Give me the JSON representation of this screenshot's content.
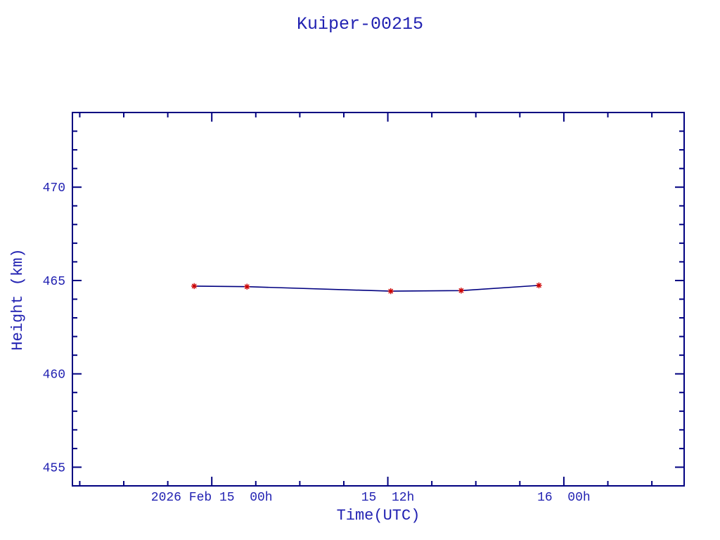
{
  "page": {
    "background": "#ffffff"
  },
  "chart_data": {
    "type": "line",
    "title": "Kuiper-00215",
    "xlabel": "Time(UTC)",
    "ylabel": "Height (km)",
    "grid": false,
    "legend": false,
    "colors": {
      "text": "#2222b2",
      "axis": "#000080",
      "line": "#000080",
      "marker": "#cc0000",
      "background": "#ffffff"
    },
    "x_axis": {
      "description": "hours relative to 2026 Feb 15 00h UTC, read from tick labels",
      "range_hours": [
        -9.5,
        32.2
      ],
      "minor_tick_step_hours": 3,
      "major_ticks": [
        {
          "value": 0,
          "label": "2026 Feb 15  00h"
        },
        {
          "value": 12,
          "label": "15  12h"
        },
        {
          "value": 24,
          "label": "16  00h"
        }
      ]
    },
    "y_axis": {
      "range_km": [
        454,
        474
      ],
      "minor_tick_step_km": 1,
      "major_ticks": [
        {
          "value": 455,
          "label": "455"
        },
        {
          "value": 460,
          "label": "460"
        },
        {
          "value": 465,
          "label": "465"
        },
        {
          "value": 470,
          "label": "470"
        }
      ]
    },
    "series": [
      {
        "name": "height",
        "marker": "asterisk",
        "points": [
          {
            "t_hours": -1.2,
            "height_km": 464.7
          },
          {
            "t_hours": 2.4,
            "height_km": 464.67
          },
          {
            "t_hours": 12.2,
            "height_km": 464.43
          },
          {
            "t_hours": 17.0,
            "height_km": 464.46
          },
          {
            "t_hours": 22.3,
            "height_km": 464.74
          }
        ]
      }
    ]
  }
}
